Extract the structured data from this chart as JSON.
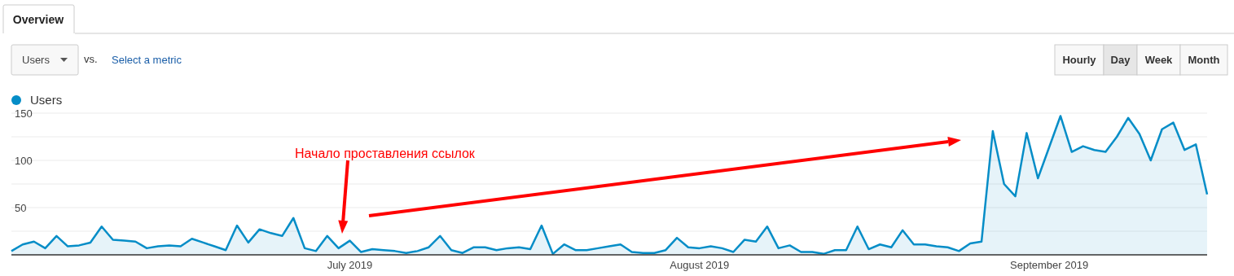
{
  "chart_data": {
    "type": "area",
    "title": "Overview",
    "annotations": [
      "Users",
      "vs.",
      "Select a metric",
      "Hourly",
      "Day",
      "Week",
      "Month",
      "Начало проставления ссылок"
    ],
    "x": [
      "2019-06-01",
      "2019-06-02",
      "2019-06-03",
      "2019-06-04",
      "2019-06-05",
      "2019-06-06",
      "2019-06-07",
      "2019-06-08",
      "2019-06-09",
      "2019-06-10",
      "2019-06-11",
      "2019-06-12",
      "2019-06-13",
      "2019-06-14",
      "2019-06-15",
      "2019-06-16",
      "2019-06-17",
      "2019-06-18",
      "2019-06-19",
      "2019-06-20",
      "2019-06-21",
      "2019-06-22",
      "2019-06-23",
      "2019-06-24",
      "2019-06-25",
      "2019-06-26",
      "2019-06-27",
      "2019-06-28",
      "2019-06-29",
      "2019-06-30",
      "2019-07-01",
      "2019-07-02",
      "2019-07-03",
      "2019-07-04",
      "2019-07-05",
      "2019-07-06",
      "2019-07-07",
      "2019-07-08",
      "2019-07-09",
      "2019-07-10",
      "2019-07-11",
      "2019-07-12",
      "2019-07-13",
      "2019-07-14",
      "2019-07-15",
      "2019-07-16",
      "2019-07-17",
      "2019-07-18",
      "2019-07-19",
      "2019-07-20",
      "2019-07-21",
      "2019-07-22",
      "2019-07-23",
      "2019-07-24",
      "2019-07-25",
      "2019-07-26",
      "2019-07-27",
      "2019-07-28",
      "2019-07-29",
      "2019-07-30",
      "2019-07-31",
      "2019-08-01",
      "2019-08-02",
      "2019-08-03",
      "2019-08-04",
      "2019-08-05",
      "2019-08-06",
      "2019-08-07",
      "2019-08-08",
      "2019-08-09",
      "2019-08-10",
      "2019-08-11",
      "2019-08-12",
      "2019-08-13",
      "2019-08-14",
      "2019-08-15",
      "2019-08-16",
      "2019-08-17",
      "2019-08-18",
      "2019-08-19",
      "2019-08-20",
      "2019-08-21",
      "2019-08-22",
      "2019-08-23",
      "2019-08-24",
      "2019-08-25",
      "2019-08-26",
      "2019-08-27",
      "2019-08-28",
      "2019-08-29",
      "2019-08-30",
      "2019-08-31",
      "2019-09-01",
      "2019-09-02",
      "2019-09-03",
      "2019-09-04",
      "2019-09-05",
      "2019-09-06",
      "2019-09-07",
      "2019-09-08",
      "2019-09-09",
      "2019-09-10",
      "2019-09-11",
      "2019-09-12",
      "2019-09-13",
      "2019-09-14",
      "2019-09-15"
    ],
    "series": [
      {
        "name": "Users",
        "color": "#058dc7",
        "values": [
          4,
          11,
          14,
          7,
          20,
          9,
          10,
          13,
          30,
          16,
          15,
          14,
          7,
          9,
          10,
          9,
          17,
          13,
          9,
          5,
          31,
          13,
          27,
          23,
          20,
          39,
          7,
          4,
          20,
          7,
          15,
          3,
          6,
          5,
          4,
          2,
          4,
          8,
          20,
          5,
          2,
          8,
          8,
          5,
          7,
          8,
          6,
          31,
          1,
          11,
          5,
          5,
          7,
          9,
          11,
          3,
          2,
          2,
          5,
          18,
          8,
          7,
          9,
          7,
          3,
          16,
          14,
          30,
          7,
          10,
          3,
          3,
          1,
          5,
          5,
          30,
          6,
          11,
          8,
          26,
          11,
          11,
          9,
          8,
          4,
          12,
          14,
          131,
          75,
          62,
          129,
          81,
          114,
          147,
          109,
          115,
          111,
          109,
          125,
          145,
          128,
          100,
          133,
          140,
          111,
          117,
          64
        ]
      }
    ],
    "xlim": [
      "2019-06-01",
      "2019-09-15"
    ],
    "xticks": [
      {
        "value": "2019-07-01",
        "label": "July 2019"
      },
      {
        "value": "2019-08-01",
        "label": "August 2019"
      },
      {
        "value": "2019-09-01",
        "label": "September 2019"
      }
    ],
    "ylim": [
      0,
      150
    ],
    "yticks": [
      {
        "value": 25,
        "label": null
      },
      50,
      {
        "value": 75,
        "label": null
      },
      100,
      {
        "value": 125,
        "label": null
      },
      150
    ],
    "grid": "y",
    "legend": "top left",
    "marker": "none"
  }
}
